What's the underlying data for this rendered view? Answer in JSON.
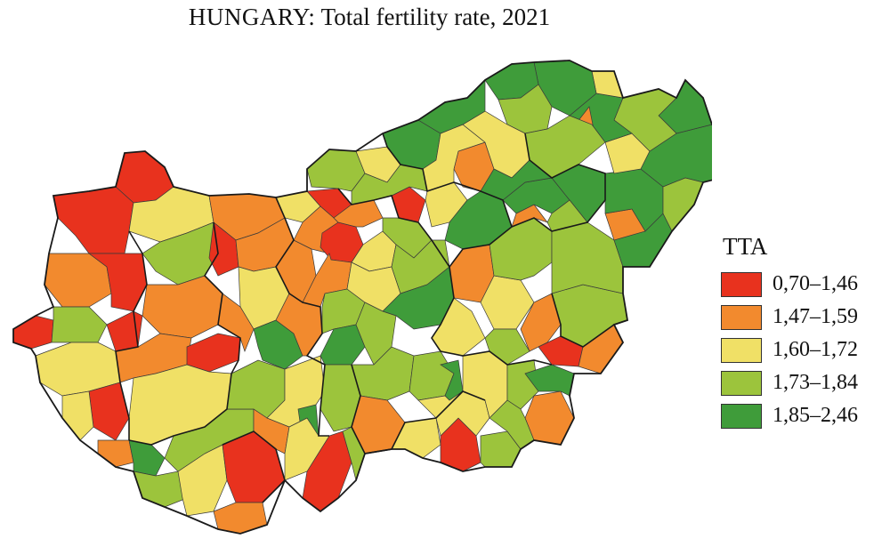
{
  "title": {
    "country": "HUNGARY:",
    "text": "Total fertility rate, 2021"
  },
  "legend": {
    "title": "TTA",
    "items": [
      {
        "label": "0,70–1,46",
        "color": "#e8321e"
      },
      {
        "label": "1,47–1,59",
        "color": "#f28a2e"
      },
      {
        "label": "1,60–1,72",
        "color": "#f0e066"
      },
      {
        "label": "1,73–1,84",
        "color": "#9cc43c"
      },
      {
        "label": "1,85–2,46",
        "color": "#3f9c3a"
      }
    ]
  }
}
